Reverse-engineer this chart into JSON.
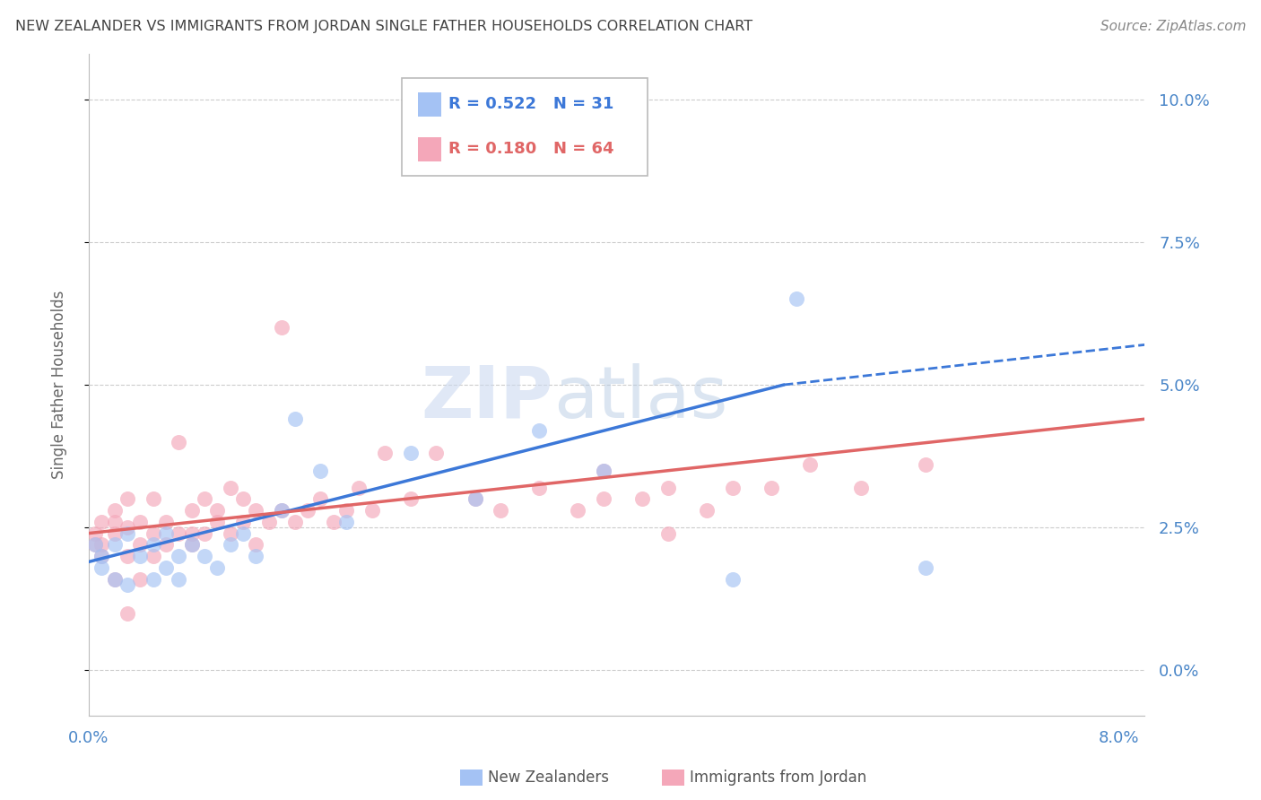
{
  "title": "NEW ZEALANDER VS IMMIGRANTS FROM JORDAN SINGLE FATHER HOUSEHOLDS CORRELATION CHART",
  "source": "Source: ZipAtlas.com",
  "ylabel": "Single Father Households",
  "blue_R": "0.522",
  "blue_N": "31",
  "pink_R": "0.180",
  "pink_N": "64",
  "blue_color": "#a4c2f4",
  "pink_color": "#f4a7b9",
  "blue_line_color": "#3c78d8",
  "pink_line_color": "#e06666",
  "background_color": "#ffffff",
  "grid_color": "#cccccc",
  "axis_label_color": "#4a86c8",
  "title_color": "#434343",
  "xlim": [
    0.0,
    0.082
  ],
  "ylim": [
    -0.008,
    0.108
  ],
  "yticks": [
    0.0,
    0.025,
    0.05,
    0.075,
    0.1
  ],
  "ytick_labels": [
    "0.0%",
    "2.5%",
    "5.0%",
    "7.5%",
    "10.0%"
  ],
  "xticks": [
    0.0,
    0.02,
    0.04,
    0.06,
    0.08
  ],
  "xtick_labels": [
    "0.0%",
    "",
    "",
    "",
    "8.0%"
  ],
  "blue_line_start_x": 0.0,
  "blue_line_start_y": 0.019,
  "blue_line_solid_end_x": 0.054,
  "blue_line_solid_end_y": 0.05,
  "blue_line_dash_end_x": 0.082,
  "blue_line_dash_end_y": 0.057,
  "pink_line_start_x": 0.0,
  "pink_line_start_y": 0.024,
  "pink_line_end_x": 0.082,
  "pink_line_end_y": 0.044,
  "blue_x": [
    0.0005,
    0.001,
    0.001,
    0.002,
    0.002,
    0.003,
    0.003,
    0.004,
    0.005,
    0.005,
    0.006,
    0.006,
    0.007,
    0.007,
    0.008,
    0.009,
    0.01,
    0.011,
    0.012,
    0.013,
    0.015,
    0.016,
    0.018,
    0.02,
    0.025,
    0.03,
    0.035,
    0.04,
    0.05,
    0.055,
    0.065
  ],
  "blue_y": [
    0.022,
    0.02,
    0.018,
    0.016,
    0.022,
    0.024,
    0.015,
    0.02,
    0.016,
    0.022,
    0.018,
    0.024,
    0.02,
    0.016,
    0.022,
    0.02,
    0.018,
    0.022,
    0.024,
    0.02,
    0.028,
    0.044,
    0.035,
    0.026,
    0.038,
    0.03,
    0.042,
    0.035,
    0.016,
    0.065,
    0.018
  ],
  "pink_x": [
    0.0005,
    0.0005,
    0.001,
    0.001,
    0.001,
    0.002,
    0.002,
    0.002,
    0.003,
    0.003,
    0.003,
    0.004,
    0.004,
    0.005,
    0.005,
    0.005,
    0.006,
    0.006,
    0.007,
    0.007,
    0.008,
    0.008,
    0.008,
    0.009,
    0.009,
    0.01,
    0.01,
    0.011,
    0.011,
    0.012,
    0.012,
    0.013,
    0.013,
    0.014,
    0.015,
    0.015,
    0.016,
    0.017,
    0.018,
    0.019,
    0.02,
    0.021,
    0.022,
    0.023,
    0.025,
    0.027,
    0.03,
    0.032,
    0.035,
    0.038,
    0.04,
    0.043,
    0.045,
    0.048,
    0.05,
    0.053,
    0.056,
    0.06,
    0.065,
    0.04,
    0.002,
    0.003,
    0.004,
    0.045
  ],
  "pink_y": [
    0.022,
    0.024,
    0.02,
    0.026,
    0.022,
    0.024,
    0.026,
    0.028,
    0.02,
    0.025,
    0.03,
    0.022,
    0.026,
    0.02,
    0.024,
    0.03,
    0.022,
    0.026,
    0.024,
    0.04,
    0.024,
    0.028,
    0.022,
    0.024,
    0.03,
    0.026,
    0.028,
    0.024,
    0.032,
    0.026,
    0.03,
    0.028,
    0.022,
    0.026,
    0.028,
    0.06,
    0.026,
    0.028,
    0.03,
    0.026,
    0.028,
    0.032,
    0.028,
    0.038,
    0.03,
    0.038,
    0.03,
    0.028,
    0.032,
    0.028,
    0.03,
    0.03,
    0.032,
    0.028,
    0.032,
    0.032,
    0.036,
    0.032,
    0.036,
    0.035,
    0.016,
    0.01,
    0.016,
    0.024
  ]
}
